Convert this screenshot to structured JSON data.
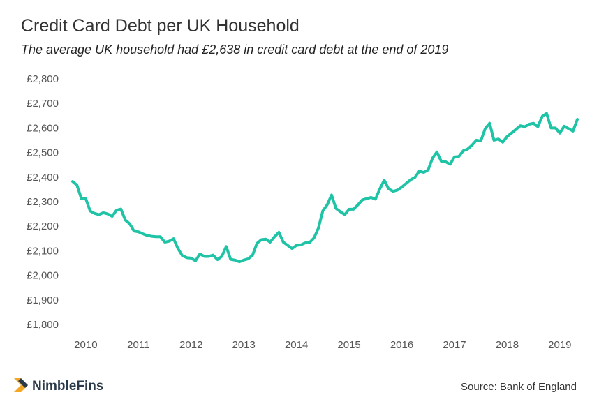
{
  "chart_data": {
    "type": "line",
    "title": "Credit Card Debt per UK Household",
    "subtitle": "The average UK household had £2,638 in credit card debt at the end of 2019",
    "source": "Source: Bank of England",
    "brand": "NimbleFins",
    "categories": [
      null,
      null,
      null,
      "2010",
      null,
      null,
      null,
      null,
      null,
      null,
      null,
      null,
      null,
      null,
      null,
      "2011",
      null,
      null,
      null,
      null,
      null,
      null,
      null,
      null,
      null,
      null,
      null,
      "2012",
      null,
      null,
      null,
      null,
      null,
      null,
      null,
      null,
      null,
      null,
      null,
      "2013",
      null,
      null,
      null,
      null,
      null,
      null,
      null,
      null,
      null,
      null,
      null,
      "2014",
      null,
      null,
      null,
      null,
      null,
      null,
      null,
      null,
      null,
      null,
      null,
      "2015",
      null,
      null,
      null,
      null,
      null,
      null,
      null,
      null,
      null,
      null,
      null,
      "2016",
      null,
      null,
      null,
      null,
      null,
      null,
      null,
      null,
      null,
      null,
      null,
      "2017",
      null,
      null,
      null,
      null,
      null,
      null,
      null,
      null,
      null,
      null,
      null,
      "2018",
      null,
      null,
      null,
      null,
      null,
      null,
      null,
      null,
      null,
      null,
      null,
      "2019",
      null,
      null,
      null,
      null
    ],
    "series": [
      {
        "name": "Credit card debt per household",
        "color": "#1fc3a6",
        "values": [
          2385,
          2370,
          2315,
          2315,
          2265,
          2255,
          2250,
          2258,
          2253,
          2243,
          2268,
          2273,
          2228,
          2213,
          2183,
          2180,
          2172,
          2165,
          2162,
          2160,
          2160,
          2138,
          2142,
          2152,
          2112,
          2083,
          2075,
          2073,
          2062,
          2090,
          2080,
          2080,
          2085,
          2067,
          2080,
          2120,
          2068,
          2065,
          2058,
          2065,
          2070,
          2085,
          2133,
          2148,
          2150,
          2138,
          2160,
          2178,
          2138,
          2125,
          2112,
          2125,
          2127,
          2135,
          2137,
          2155,
          2195,
          2265,
          2290,
          2330,
          2275,
          2262,
          2250,
          2272,
          2272,
          2290,
          2310,
          2315,
          2320,
          2313,
          2355,
          2390,
          2355,
          2345,
          2350,
          2362,
          2377,
          2392,
          2402,
          2427,
          2422,
          2432,
          2480,
          2505,
          2467,
          2465,
          2455,
          2485,
          2487,
          2510,
          2517,
          2533,
          2553,
          2550,
          2600,
          2622,
          2553,
          2558,
          2545,
          2568,
          2582,
          2597,
          2612,
          2608,
          2618,
          2622,
          2608,
          2650,
          2662,
          2603,
          2603,
          2582,
          2610,
          2600,
          2590,
          2638
        ]
      }
    ],
    "ylim": [
      1800,
      2800
    ],
    "yticks": [
      {
        "value": 1800,
        "label": "£1,800"
      },
      {
        "value": 1900,
        "label": "£1,900"
      },
      {
        "value": 2000,
        "label": "£2,000"
      },
      {
        "value": 2100,
        "label": "£2,100"
      },
      {
        "value": 2200,
        "label": "£2,200"
      },
      {
        "value": 2300,
        "label": "£2,300"
      },
      {
        "value": 2400,
        "label": "£2,400"
      },
      {
        "value": 2500,
        "label": "£2,500"
      },
      {
        "value": 2600,
        "label": "£2,600"
      },
      {
        "value": 2700,
        "label": "£2,700"
      },
      {
        "value": 2800,
        "label": "£2,800"
      }
    ],
    "grid": false
  }
}
